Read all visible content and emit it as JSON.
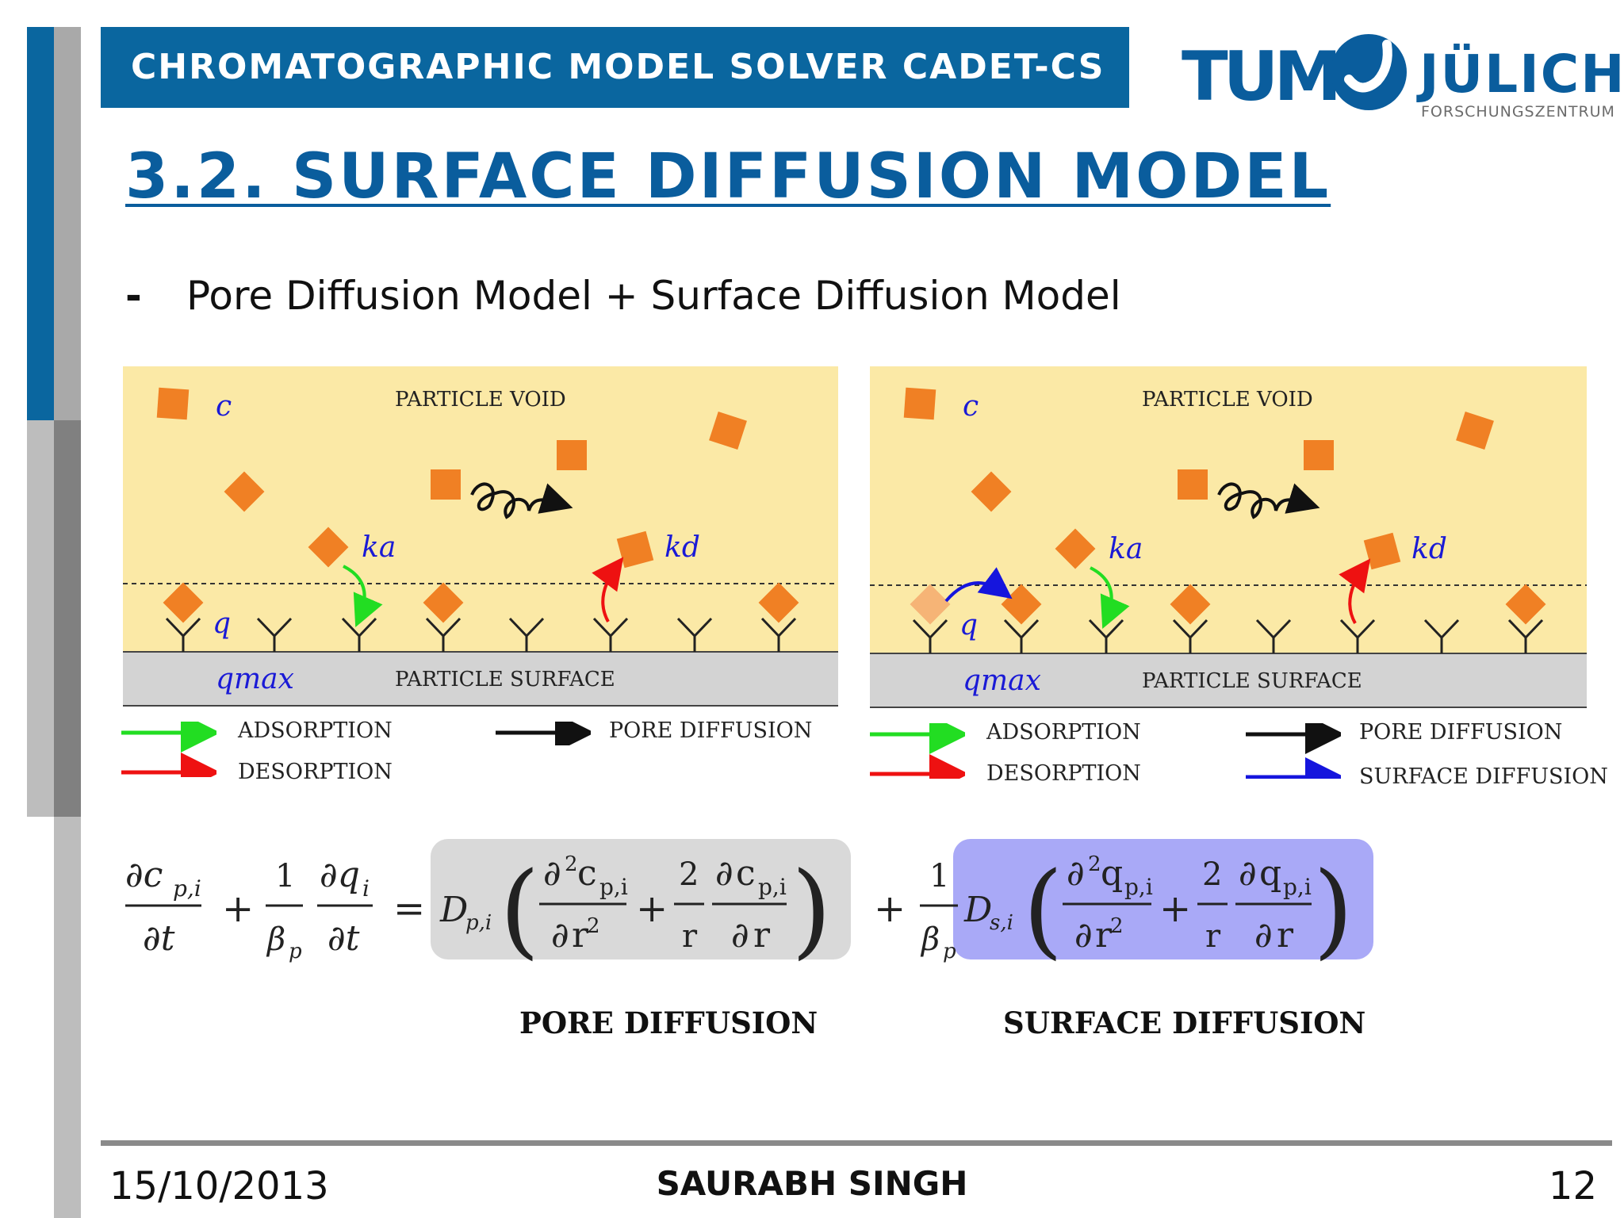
{
  "header": {
    "title": "CHROMATOGRAPHIC MODEL SOLVER CADET-CS"
  },
  "logos": {
    "tum": "TUM",
    "julich": "JÜLICH",
    "julich_sub": "FORSCHUNGSZENTRUM"
  },
  "slide": {
    "title": "3.2. SURFACE DIFFUSION MODEL",
    "bullet_marker": "-",
    "bullet": "Pore Diffusion Model + Surface Diffusion Model"
  },
  "diagram_left": {
    "void_label": "PARTICLE VOID",
    "surface_label": "PARTICLE SURFACE",
    "c": "c",
    "q": "q",
    "qmax": "qmax",
    "ka": "ka",
    "kd": "kd",
    "legend": {
      "adsorption": "ADSORPTION",
      "desorption": "DESORPTION",
      "pore": "PORE DIFFUSION"
    }
  },
  "diagram_right": {
    "void_label": "PARTICLE VOID",
    "surface_label": "PARTICLE SURFACE",
    "c": "c",
    "q": "q",
    "qmax": "qmax",
    "ka": "ka",
    "kd": "kd",
    "legend": {
      "adsorption": "ADSORPTION",
      "desorption": "DESORPTION",
      "pore": "PORE DIFFUSION",
      "surface": "SURFACE DIFFUSION"
    }
  },
  "equation": {
    "pore_label": "PORE DIFFUSION",
    "surface_label": "SURFACE DIFFUSION"
  },
  "colors": {
    "brand_blue": "#0a669f",
    "void": "#fbe9a6",
    "surface": "#d3d3d3",
    "particle": "#f08024",
    "adsorption": "#22dd22",
    "desorption": "#ee1111",
    "surface_diffusion": "#1515dd",
    "pore_box": "#d9d9d9",
    "surface_box": "#a9a9f7"
  },
  "footer": {
    "date": "15/10/2013",
    "author": "SAURABH SINGH",
    "page": "12"
  }
}
